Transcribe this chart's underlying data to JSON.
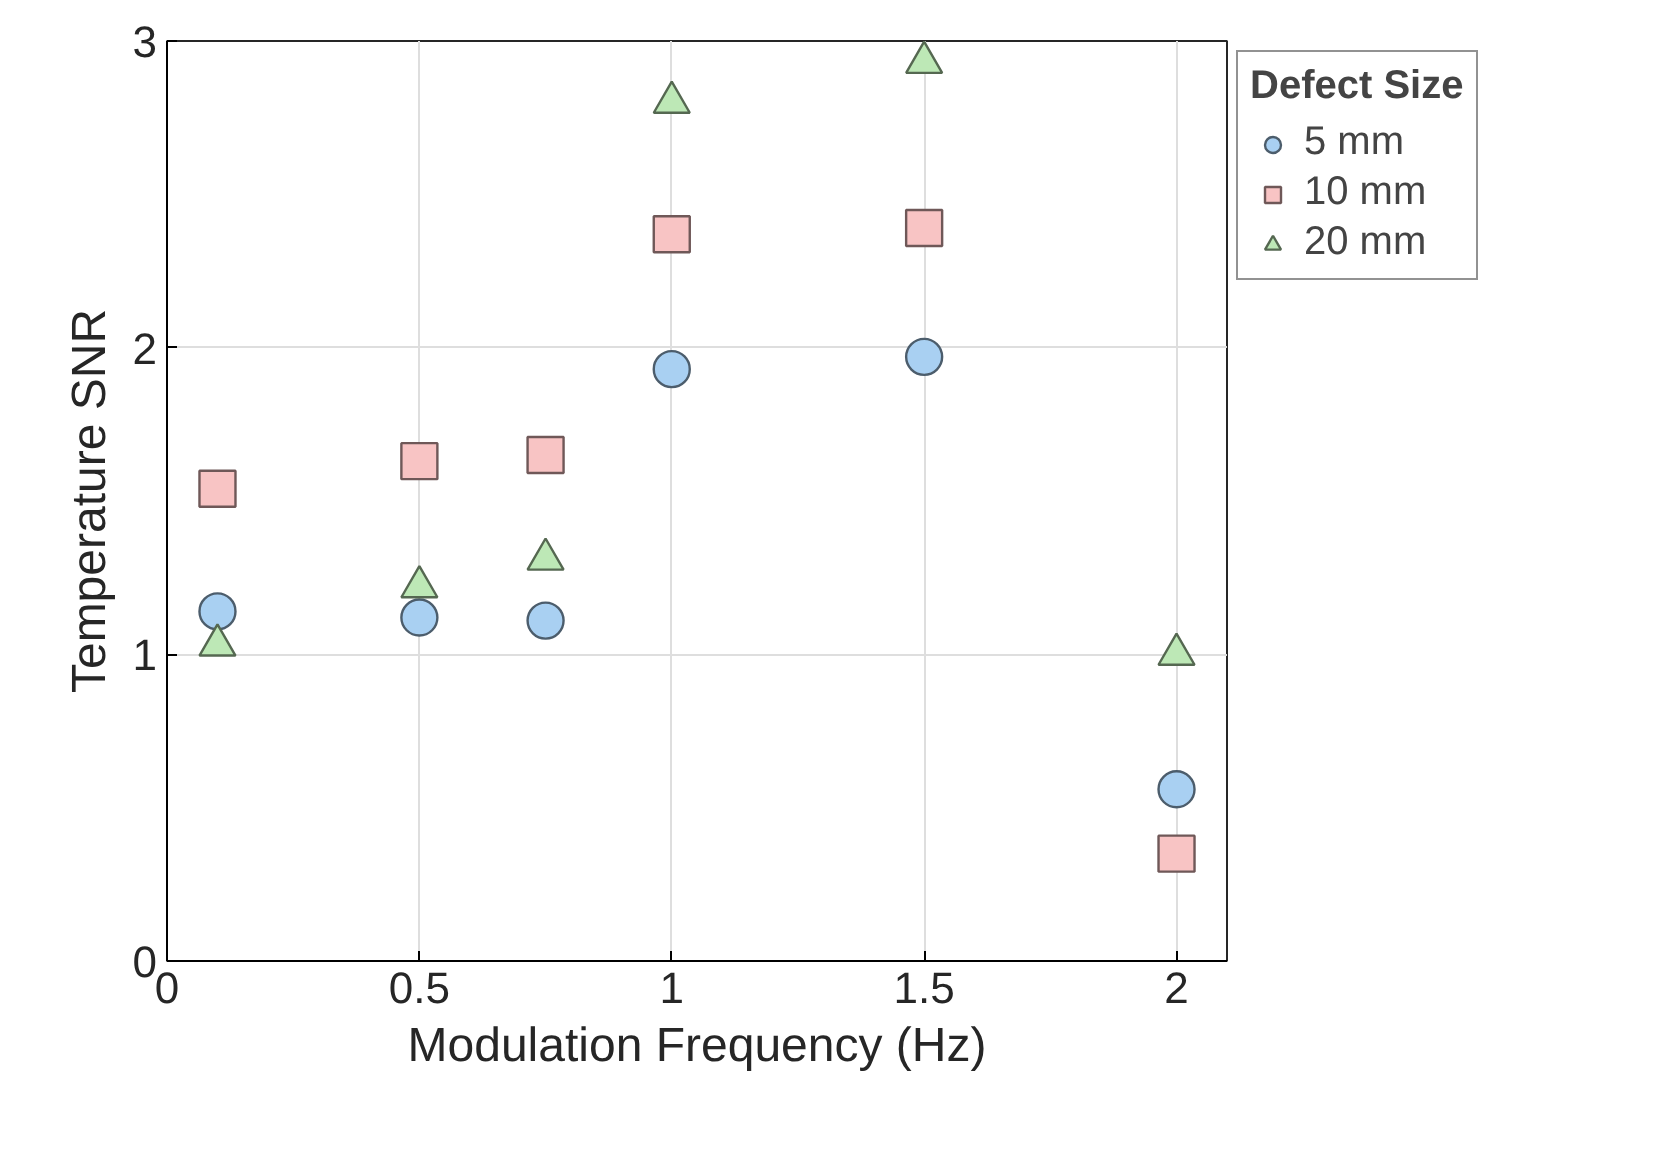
{
  "chart_data": {
    "type": "scatter",
    "xlabel": "Modulation Frequency (Hz)",
    "ylabel": "Temperature SNR",
    "legend_title": "Defect Size",
    "x": [
      0.1,
      0.5,
      0.75,
      1,
      1.5,
      2
    ],
    "series": [
      {
        "name": "5 mm",
        "color": "#a9d0f2",
        "marker": "circle",
        "values": [
          1.14,
          1.12,
          1.11,
          1.93,
          1.97,
          0.56
        ]
      },
      {
        "name": "10 mm",
        "color": "#f8c4c4",
        "marker": "square",
        "values": [
          1.54,
          1.63,
          1.65,
          2.37,
          2.39,
          0.35
        ]
      },
      {
        "name": "20 mm",
        "color": "#bde8b6",
        "marker": "triangle",
        "values": [
          1.03,
          1.22,
          1.31,
          2.8,
          2.93,
          1.0
        ]
      }
    ],
    "xlim": [
      0,
      2.1
    ],
    "ylim": [
      0,
      3
    ],
    "xticks": [
      0,
      0.5,
      1,
      1.5,
      2
    ],
    "yticks": [
      0,
      1,
      2,
      3
    ],
    "grid": true,
    "legend": "top right"
  }
}
